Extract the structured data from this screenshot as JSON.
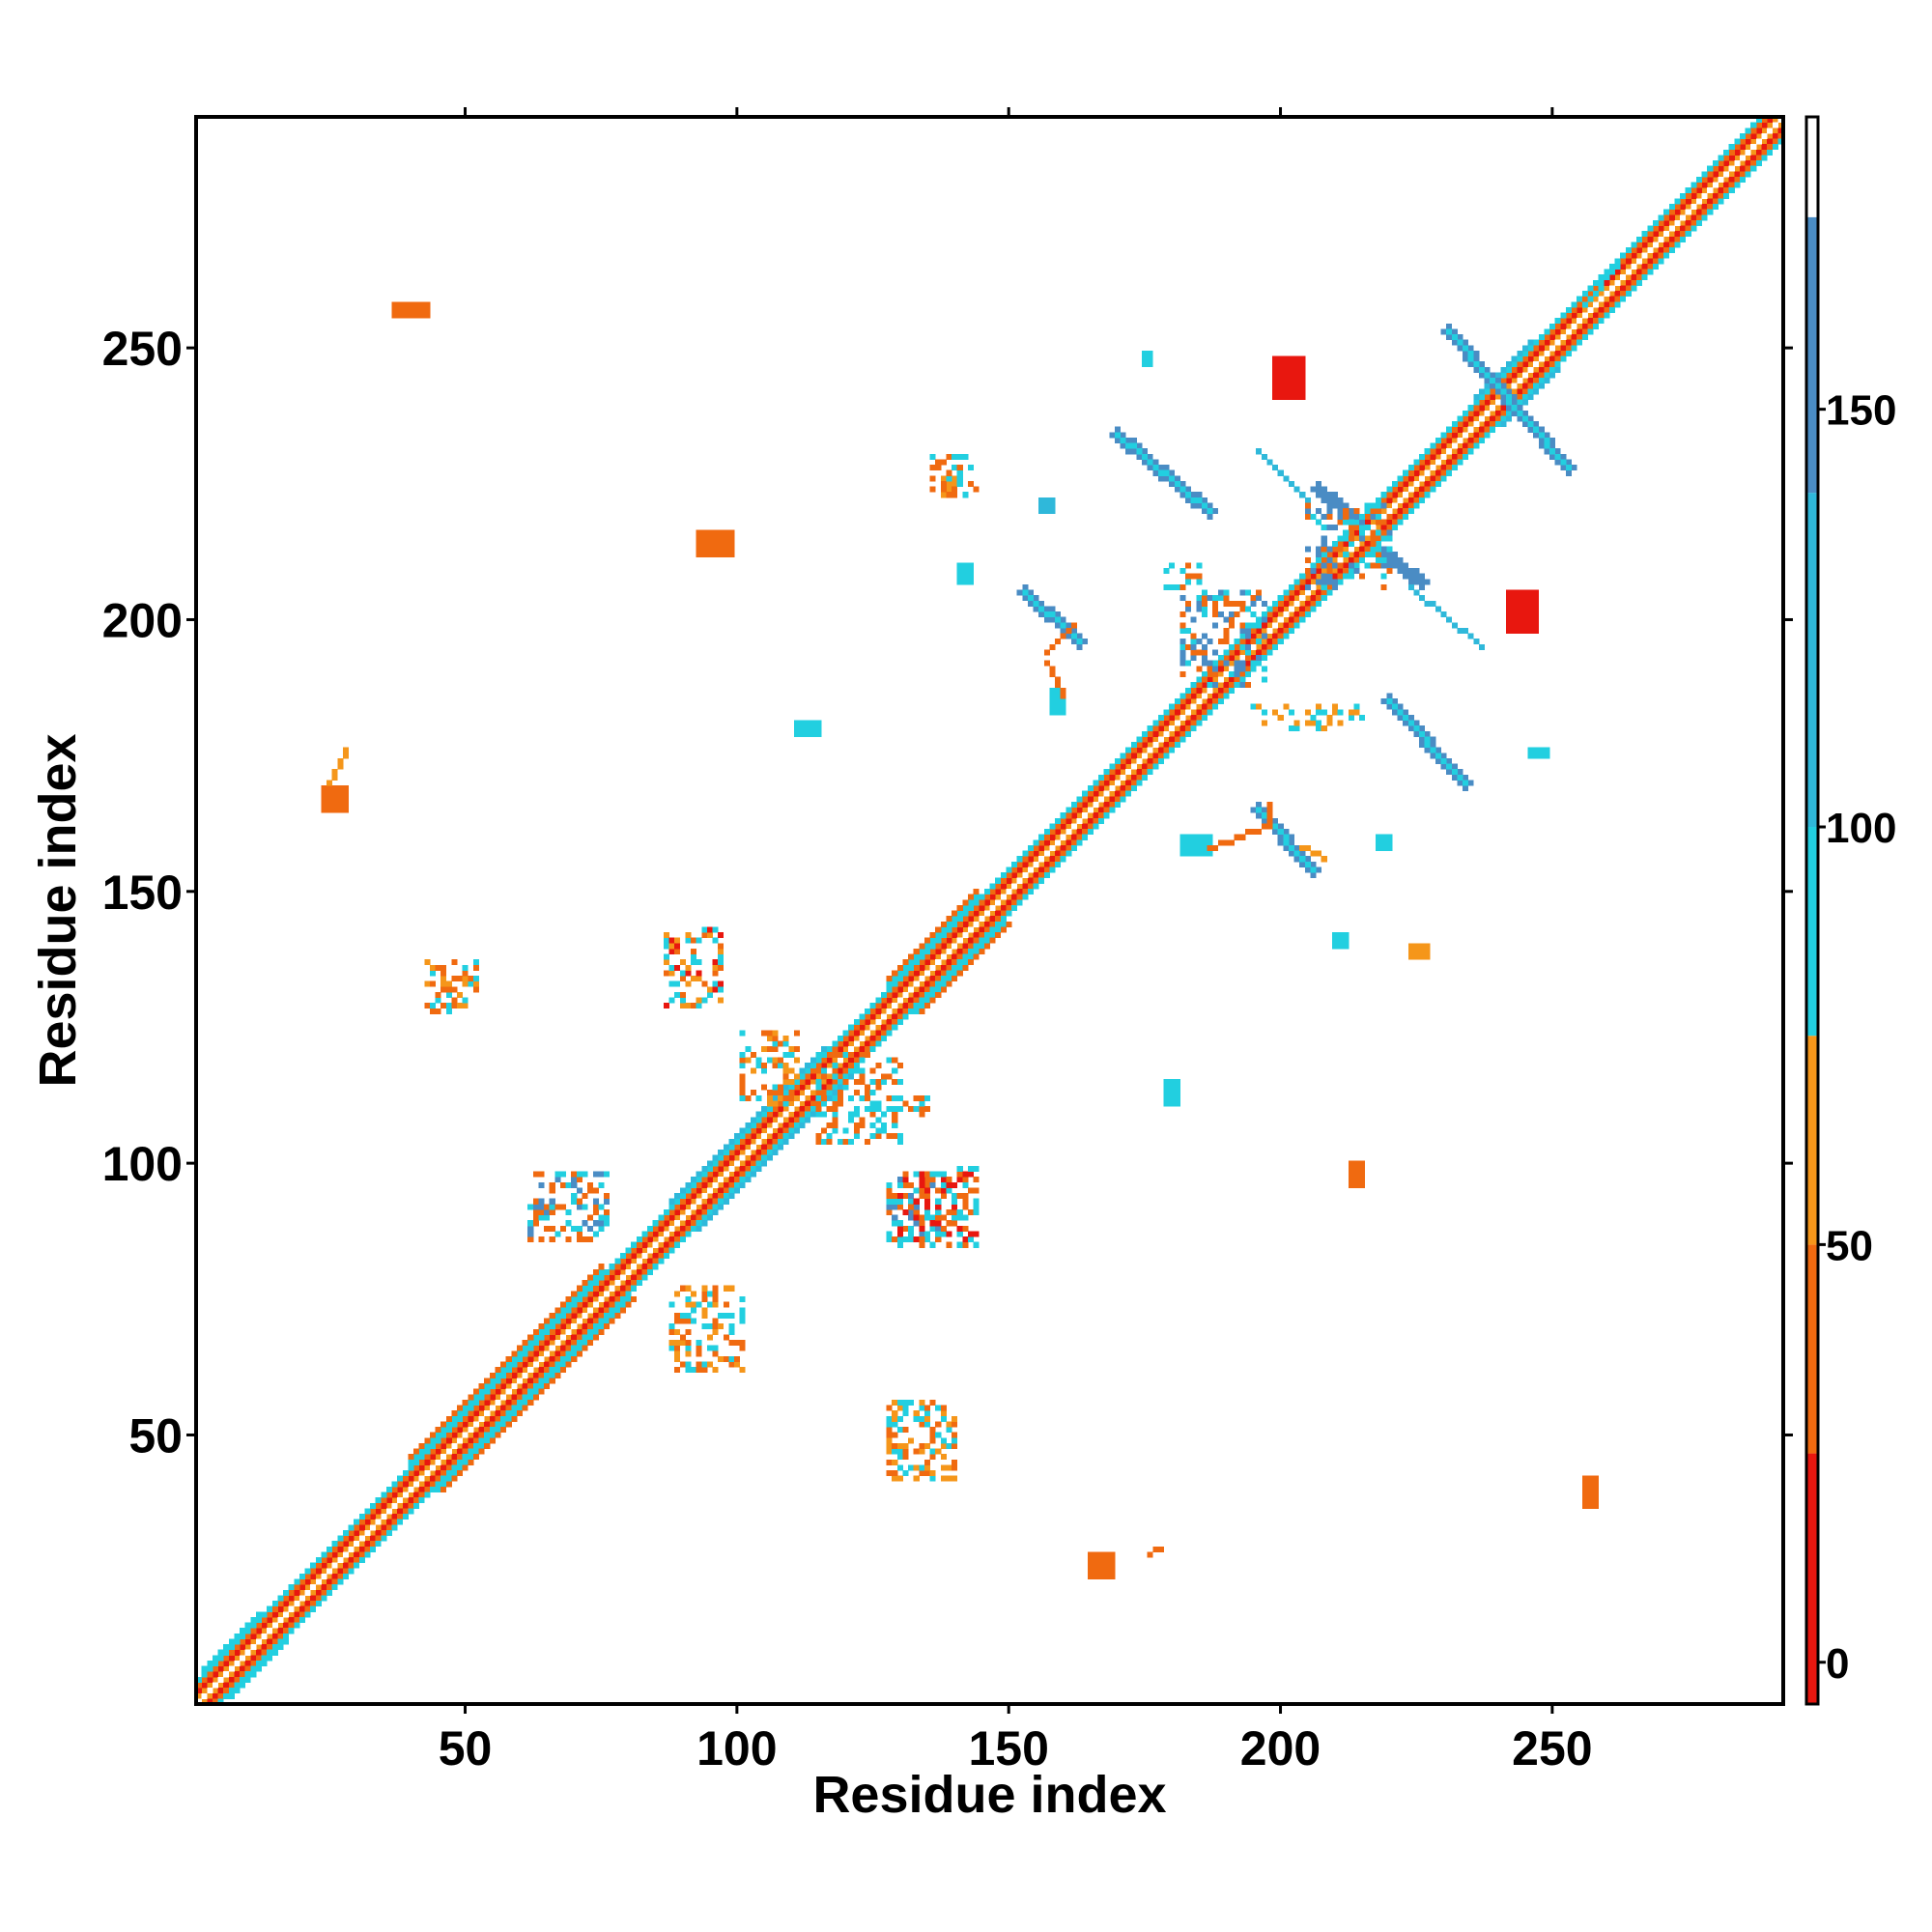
{
  "chart_data": {
    "type": "heatmap",
    "title": "",
    "xlabel": "Residue index",
    "ylabel": "Residue index",
    "xlim": [
      1,
      292
    ],
    "ylim": [
      1,
      292
    ],
    "x_ticks": [
      50,
      100,
      150,
      200,
      250
    ],
    "y_ticks": [
      50,
      100,
      150,
      200,
      250
    ],
    "grid": false,
    "colorbar": {
      "ticks": [
        0,
        50,
        100,
        150
      ],
      "range": [
        -5,
        185
      ],
      "segments": [
        {
          "from": -5,
          "to": 25,
          "color": "#e8170f"
        },
        {
          "from": 25,
          "to": 50,
          "color": "#f06a10"
        },
        {
          "from": 50,
          "to": 75,
          "color": "#f5961a"
        },
        {
          "from": 75,
          "to": 100,
          "color": "#22cfe0"
        },
        {
          "from": 100,
          "to": 140,
          "color": "#2fb8da"
        },
        {
          "from": 140,
          "to": 173,
          "color": "#4a8cc4"
        },
        {
          "from": 173,
          "to": 185,
          "color": "#ffffff"
        }
      ]
    },
    "colors": {
      "red": "#e8170f",
      "orange_red": "#f06a10",
      "orange": "#f5961a",
      "cyan": "#22cfe0",
      "sky": "#2fb8da",
      "steel": "#4a8cc4"
    },
    "diagonal": {
      "from": 1,
      "to": 292
    },
    "diagonal_bands": [
      {
        "offset": 0,
        "from": 1,
        "to": 292,
        "color": "#ffffff"
      },
      {
        "offset": 1,
        "from": 1,
        "to": 292,
        "color": "#f5961a"
      },
      {
        "offset": 2,
        "from": 1,
        "to": 292,
        "color": "#e8170f"
      },
      {
        "offset": 3,
        "from": 1,
        "to": 292,
        "color": "#f06a10"
      },
      {
        "offset": 4,
        "from": 1,
        "to": 292,
        "color": "#22cfe0"
      },
      {
        "offset": 5,
        "from": 40,
        "to": 75,
        "color": "#22cfe0"
      },
      {
        "offset": 5,
        "from": 128,
        "to": 144,
        "color": "#22cfe0"
      },
      {
        "offset": 5,
        "from": 88,
        "to": 116,
        "color": "#2fb8da"
      },
      {
        "offset": 6,
        "from": 40,
        "to": 75,
        "color": "#f06a10"
      },
      {
        "offset": 6,
        "from": 128,
        "to": 144,
        "color": "#f06a10"
      },
      {
        "offset": 5,
        "from": 2,
        "to": 12,
        "color": "#22cfe0"
      },
      {
        "offset": 5,
        "from": 236,
        "to": 246,
        "color": "#2fb8da"
      }
    ],
    "blocks": [
      {
        "x": [
          37,
          43
        ],
        "y": [
          256,
          258
        ],
        "color": "#f06a10"
      },
      {
        "x": [
          199,
          204
        ],
        "y": [
          241,
          248
        ],
        "color": "#e8170f"
      },
      {
        "x": [
          242,
          247
        ],
        "y": [
          198,
          205
        ],
        "color": "#e8170f"
      },
      {
        "x": [
          24,
          28
        ],
        "y": [
          165,
          169
        ],
        "color": "#f06a10"
      },
      {
        "x": [
          165,
          169
        ],
        "y": [
          24,
          28
        ],
        "color": "#f06a10"
      },
      {
        "x": [
          158,
          160
        ],
        "y": [
          183,
          187
        ],
        "color": "#22cfe0"
      },
      {
        "x": [
          182,
          187
        ],
        "y": [
          157,
          160
        ],
        "color": "#22cfe0"
      },
      {
        "x": [
          111,
          115
        ],
        "y": [
          179,
          181
        ],
        "color": "#22cfe0"
      },
      {
        "x": [
          179,
          181
        ],
        "y": [
          111,
          115
        ],
        "color": "#22cfe0"
      },
      {
        "x": [
          93,
          99
        ],
        "y": [
          212,
          216
        ],
        "color": "#f06a10"
      },
      {
        "x": [
          213,
          215
        ],
        "y": [
          96,
          100
        ],
        "color": "#f06a10"
      },
      {
        "x": [
          256,
          258
        ],
        "y": [
          37,
          42
        ],
        "color": "#f06a10"
      },
      {
        "x": [
          175,
          176
        ],
        "y": [
          247,
          249
        ],
        "color": "#22cfe0"
      },
      {
        "x": [
          246,
          249
        ],
        "y": [
          175,
          176
        ],
        "color": "#22cfe0"
      },
      {
        "x": [
          210,
          212
        ],
        "y": [
          140,
          142
        ],
        "color": "#22cfe0"
      },
      {
        "x": [
          224,
          227
        ],
        "y": [
          138,
          140
        ],
        "color": "#f5961a"
      },
      {
        "x": [
          218,
          220
        ],
        "y": [
          158,
          160
        ],
        "color": "#22cfe0"
      },
      {
        "x": [
          156,
          158
        ],
        "y": [
          220,
          222
        ],
        "color": "#2fb8da"
      },
      {
        "x": [
          138,
          140
        ],
        "y": [
          223,
          226
        ],
        "color": "#f5961a"
      },
      {
        "x": [
          141,
          143
        ],
        "y": [
          207,
          210
        ],
        "color": "#22cfe0"
      }
    ],
    "segments": [
      {
        "x0": 170,
        "y0": 234,
        "x1": 187,
        "y1": 220,
        "width": 3,
        "color": "#4a8cc4"
      },
      {
        "x0": 170,
        "y0": 234,
        "x1": 187,
        "y1": 220,
        "width": 1,
        "color": "#22cfe0"
      },
      {
        "x0": 231,
        "y0": 253,
        "x1": 253,
        "y1": 228,
        "width": 3,
        "color": "#4a8cc4"
      },
      {
        "x0": 231,
        "y0": 253,
        "x1": 253,
        "y1": 228,
        "width": 1,
        "color": "#22cfe0"
      },
      {
        "x0": 220,
        "y0": 185,
        "x1": 234,
        "y1": 170,
        "width": 3,
        "color": "#4a8cc4"
      },
      {
        "x0": 220,
        "y0": 185,
        "x1": 234,
        "y1": 170,
        "width": 1,
        "color": "#22cfe0"
      },
      {
        "x0": 153,
        "y0": 205,
        "x1": 163,
        "y1": 196,
        "width": 3,
        "color": "#4a8cc4"
      },
      {
        "x0": 153,
        "y0": 205,
        "x1": 163,
        "y1": 196,
        "width": 1,
        "color": "#22cfe0"
      },
      {
        "x0": 196,
        "y0": 165,
        "x1": 206,
        "y1": 154,
        "width": 3,
        "color": "#4a8cc4"
      },
      {
        "x0": 196,
        "y0": 165,
        "x1": 206,
        "y1": 154,
        "width": 1,
        "color": "#22cfe0"
      },
      {
        "x0": 207,
        "y0": 224,
        "x1": 213,
        "y1": 219,
        "width": 2,
        "color": "#4a8cc4"
      },
      {
        "x0": 219,
        "y0": 212,
        "x1": 226,
        "y1": 207,
        "width": 2,
        "color": "#4a8cc4"
      },
      {
        "x0": 196,
        "y0": 231,
        "x1": 205,
        "y1": 222,
        "width": 1,
        "color": "#2fb8da"
      },
      {
        "x0": 224,
        "y0": 206,
        "x1": 237,
        "y1": 195,
        "width": 1,
        "color": "#2fb8da"
      },
      {
        "x0": 157,
        "y0": 194,
        "x1": 162,
        "y1": 199,
        "width": 1,
        "color": "#f06a10"
      },
      {
        "x0": 157,
        "y0": 192,
        "x1": 160,
        "y1": 186,
        "width": 1,
        "color": "#f06a10"
      },
      {
        "x0": 187,
        "y0": 158,
        "x1": 198,
        "y1": 162,
        "width": 1,
        "color": "#f06a10"
      },
      {
        "x0": 204,
        "y0": 158,
        "x1": 208,
        "y1": 156,
        "width": 1,
        "color": "#f5961a"
      },
      {
        "x0": 198,
        "y0": 162,
        "x1": 198,
        "y1": 166,
        "width": 1,
        "color": "#f06a10"
      },
      {
        "x0": 25,
        "y0": 170,
        "x1": 28,
        "y1": 176,
        "width": 1,
        "color": "#f5961a"
      },
      {
        "x0": 176,
        "y0": 28,
        "x1": 178,
        "y1": 29,
        "width": 1,
        "color": "#f06a10"
      },
      {
        "x0": 256,
        "y0": 258,
        "x1": 262,
        "y1": 265,
        "width": 1,
        "color": "#22cfe0"
      }
    ],
    "scatter_clusters": [
      {
        "x": [
          43,
          52
        ],
        "y": [
          128,
          137
        ],
        "colors": [
          "#22cfe0",
          "#f06a10",
          "#f5961a"
        ],
        "density": 0.45
      },
      {
        "x": [
          87,
          97
        ],
        "y": [
          129,
          143
        ],
        "colors": [
          "#22cfe0",
          "#f06a10",
          "#e8170f",
          "#f5961a"
        ],
        "density": 0.45
      },
      {
        "x": [
          128,
          137
        ],
        "y": [
          86,
          97
        ],
        "colors": [
          "#22cfe0",
          "#f06a10",
          "#4a8cc4"
        ],
        "density": 0.45
      },
      {
        "x": [
          130,
          144
        ],
        "y": [
          85,
          99
        ],
        "colors": [
          "#22cfe0",
          "#f06a10",
          "#e8170f"
        ],
        "density": 0.45
      },
      {
        "x": [
          62,
          76
        ],
        "y": [
          86,
          98
        ],
        "colors": [
          "#22cfe0",
          "#f06a10",
          "#4a8cc4"
        ],
        "density": 0.45
      },
      {
        "x": [
          88,
          101
        ],
        "y": [
          62,
          77
        ],
        "colors": [
          "#22cfe0",
          "#f5961a",
          "#f06a10"
        ],
        "density": 0.4
      },
      {
        "x": [
          128,
          140
        ],
        "y": [
          42,
          56
        ],
        "colors": [
          "#22cfe0",
          "#f06a10",
          "#f5961a"
        ],
        "density": 0.4
      },
      {
        "x": [
          101,
          111
        ],
        "y": [
          111,
          124
        ],
        "colors": [
          "#22cfe0",
          "#f06a10",
          "#f5961a"
        ],
        "density": 0.45
      },
      {
        "x": [
          115,
          130
        ],
        "y": [
          104,
          120
        ],
        "colors": [
          "#22cfe0",
          "#f06a10"
        ],
        "density": 0.4
      },
      {
        "x": [
          182,
          197
        ],
        "y": [
          188,
          205
        ],
        "colors": [
          "#22cfe0",
          "#f06a10",
          "#4a8cc4"
        ],
        "density": 0.4
      },
      {
        "x": [
          205,
          220
        ],
        "y": [
          206,
          221
        ],
        "colors": [
          "#22cfe0",
          "#4a8cc4",
          "#f06a10"
        ],
        "density": 0.35
      },
      {
        "x": [
          136,
          144
        ],
        "y": [
          223,
          230
        ],
        "colors": [
          "#22cfe0",
          "#f06a10"
        ],
        "density": 0.3
      },
      {
        "x": [
          178,
          185
        ],
        "y": [
          206,
          210
        ],
        "colors": [
          "#22cfe0",
          "#f06a10"
        ],
        "density": 0.4
      },
      {
        "x": [
          195,
          215
        ],
        "y": [
          180,
          184
        ],
        "colors": [
          "#f5961a",
          "#22cfe0"
        ],
        "density": 0.3
      },
      {
        "x": [
          130,
          135
        ],
        "y": [
          108,
          112
        ],
        "colors": [
          "#f06a10",
          "#22cfe0"
        ],
        "density": 0.35
      }
    ]
  }
}
